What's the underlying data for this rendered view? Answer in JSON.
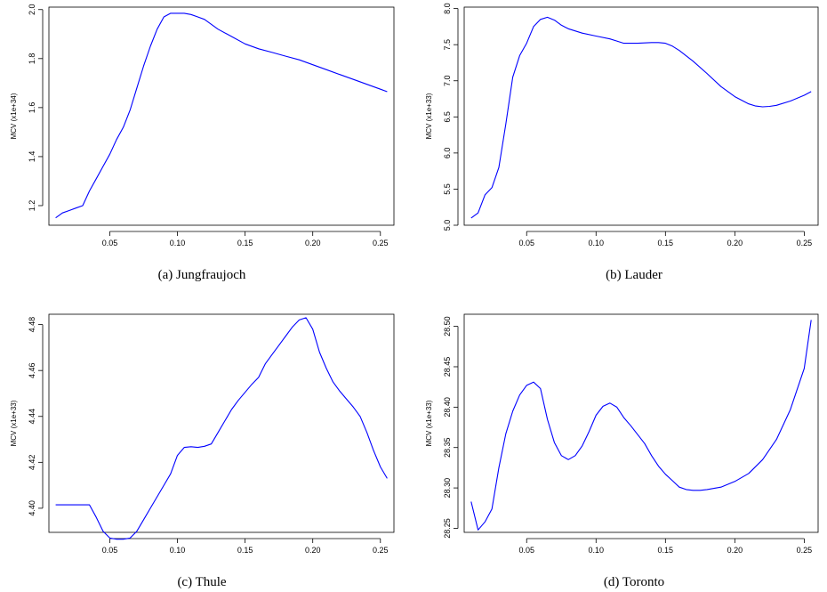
{
  "chart_data": [
    {
      "type": "line",
      "ylabel": "MCV (x1e+34)",
      "caption": "(a)  Jungfraujoch",
      "xlim": [
        0.005,
        0.26
      ],
      "ylim": [
        1.12,
        2.01
      ],
      "xticks": [
        0.05,
        0.1,
        0.15,
        0.2,
        0.25
      ],
      "xtick_labels": [
        "0.05",
        "0.10",
        "0.15",
        "0.20",
        "0.25"
      ],
      "yticks": [
        1.2,
        1.4,
        1.6,
        1.8,
        2.0
      ],
      "ytick_labels": [
        "1.2",
        "1.4",
        "1.6",
        "1.8",
        "2.0"
      ],
      "color": "#0000ff",
      "series": [
        {
          "x": [
            0.01,
            0.015,
            0.02,
            0.025,
            0.03,
            0.035,
            0.04,
            0.045,
            0.05,
            0.055,
            0.06,
            0.065,
            0.07,
            0.075,
            0.08,
            0.085,
            0.09,
            0.095,
            0.1,
            0.105,
            0.11,
            0.115,
            0.12,
            0.125,
            0.13,
            0.14,
            0.15,
            0.16,
            0.17,
            0.18,
            0.19,
            0.2,
            0.21,
            0.22,
            0.23,
            0.24,
            0.25,
            0.255
          ],
          "y": [
            1.15,
            1.17,
            1.18,
            1.19,
            1.2,
            1.26,
            1.31,
            1.36,
            1.41,
            1.47,
            1.52,
            1.59,
            1.68,
            1.77,
            1.85,
            1.92,
            1.97,
            1.985,
            1.985,
            1.985,
            1.98,
            1.97,
            1.96,
            1.94,
            1.92,
            1.89,
            1.86,
            1.84,
            1.825,
            1.81,
            1.795,
            1.775,
            1.755,
            1.735,
            1.715,
            1.695,
            1.675,
            1.665
          ]
        }
      ]
    },
    {
      "type": "line",
      "ylabel": "MCV (x1e+33)",
      "caption": "(b)  Lauder",
      "xlim": [
        0.005,
        0.26
      ],
      "ylim": [
        5.0,
        8.02
      ],
      "xticks": [
        0.05,
        0.1,
        0.15,
        0.2,
        0.25
      ],
      "xtick_labels": [
        "0.05",
        "0.10",
        "0.15",
        "0.20",
        "0.25"
      ],
      "yticks": [
        5.0,
        5.5,
        6.0,
        6.5,
        7.0,
        7.5,
        8.0
      ],
      "ytick_labels": [
        "5.0",
        "5.5",
        "6.0",
        "6.5",
        "7.0",
        "7.5",
        "8.0"
      ],
      "color": "#0000ff",
      "series": [
        {
          "x": [
            0.01,
            0.015,
            0.02,
            0.025,
            0.03,
            0.035,
            0.04,
            0.045,
            0.05,
            0.055,
            0.06,
            0.065,
            0.07,
            0.075,
            0.08,
            0.09,
            0.1,
            0.11,
            0.115,
            0.12,
            0.13,
            0.14,
            0.145,
            0.15,
            0.155,
            0.16,
            0.17,
            0.18,
            0.19,
            0.2,
            0.21,
            0.215,
            0.22,
            0.225,
            0.23,
            0.24,
            0.25,
            0.255
          ],
          "y": [
            5.1,
            5.17,
            5.42,
            5.52,
            5.8,
            6.4,
            7.05,
            7.35,
            7.52,
            7.75,
            7.85,
            7.88,
            7.84,
            7.77,
            7.72,
            7.66,
            7.62,
            7.58,
            7.55,
            7.52,
            7.52,
            7.53,
            7.53,
            7.52,
            7.48,
            7.42,
            7.27,
            7.1,
            6.92,
            6.78,
            6.68,
            6.65,
            6.64,
            6.645,
            6.66,
            6.72,
            6.8,
            6.85
          ]
        }
      ]
    },
    {
      "type": "line",
      "ylabel": "MCV (x1e+33)",
      "caption": "(c)  Thule",
      "xlim": [
        0.005,
        0.26
      ],
      "ylim": [
        4.3895,
        4.4845
      ],
      "xticks": [
        0.05,
        0.1,
        0.15,
        0.2,
        0.25
      ],
      "xtick_labels": [
        "0.05",
        "0.10",
        "0.15",
        "0.20",
        "0.25"
      ],
      "yticks": [
        4.4,
        4.42,
        4.44,
        4.46,
        4.48
      ],
      "ytick_labels": [
        "4.40",
        "4.42",
        "4.44",
        "4.46",
        "4.48"
      ],
      "color": "#0000ff",
      "series": [
        {
          "x": [
            0.01,
            0.015,
            0.02,
            0.025,
            0.03,
            0.035,
            0.04,
            0.045,
            0.05,
            0.055,
            0.06,
            0.065,
            0.07,
            0.075,
            0.08,
            0.085,
            0.09,
            0.095,
            0.1,
            0.105,
            0.11,
            0.115,
            0.12,
            0.125,
            0.13,
            0.135,
            0.14,
            0.145,
            0.15,
            0.155,
            0.16,
            0.165,
            0.17,
            0.175,
            0.18,
            0.185,
            0.19,
            0.195,
            0.2,
            0.205,
            0.21,
            0.215,
            0.22,
            0.225,
            0.23,
            0.235,
            0.24,
            0.245,
            0.25,
            0.255
          ],
          "y": [
            4.4015,
            4.4015,
            4.4015,
            4.4015,
            4.4015,
            4.4015,
            4.396,
            4.39,
            4.387,
            4.3865,
            4.3865,
            4.387,
            4.39,
            4.395,
            4.4,
            4.405,
            4.41,
            4.415,
            4.423,
            4.4265,
            4.4268,
            4.4265,
            4.427,
            4.428,
            4.433,
            4.438,
            4.443,
            4.447,
            4.4505,
            4.454,
            4.457,
            4.463,
            4.467,
            4.471,
            4.475,
            4.479,
            4.482,
            4.483,
            4.478,
            4.468,
            4.461,
            4.455,
            4.451,
            4.4475,
            4.444,
            4.44,
            4.433,
            4.425,
            4.418,
            4.413
          ]
        }
      ]
    },
    {
      "type": "line",
      "ylabel": "MCV (x1e+33)",
      "caption": "(d)  Toronto",
      "xlim": [
        0.005,
        0.26
      ],
      "ylim": [
        28.245,
        28.515
      ],
      "xticks": [
        0.05,
        0.1,
        0.15,
        0.2,
        0.25
      ],
      "xtick_labels": [
        "0.05",
        "0.10",
        "0.15",
        "0.20",
        "0.25"
      ],
      "yticks": [
        28.25,
        28.3,
        28.35,
        28.4,
        28.45,
        28.5
      ],
      "ytick_labels": [
        "28.25",
        "28.30",
        "28.35",
        "28.40",
        "28.45",
        "28.50"
      ],
      "color": "#0000ff",
      "series": [
        {
          "x": [
            0.01,
            0.015,
            0.02,
            0.025,
            0.03,
            0.035,
            0.04,
            0.045,
            0.05,
            0.055,
            0.06,
            0.065,
            0.07,
            0.075,
            0.08,
            0.085,
            0.09,
            0.095,
            0.1,
            0.105,
            0.11,
            0.115,
            0.12,
            0.125,
            0.13,
            0.135,
            0.14,
            0.145,
            0.15,
            0.155,
            0.16,
            0.165,
            0.17,
            0.175,
            0.18,
            0.19,
            0.2,
            0.21,
            0.22,
            0.23,
            0.24,
            0.25,
            0.255
          ],
          "y": [
            28.283,
            28.248,
            28.258,
            28.274,
            28.325,
            28.367,
            28.395,
            28.415,
            28.427,
            28.431,
            28.423,
            28.385,
            28.356,
            28.34,
            28.335,
            28.34,
            28.352,
            28.37,
            28.39,
            28.401,
            28.405,
            28.4,
            28.387,
            28.377,
            28.366,
            28.355,
            28.34,
            28.327,
            28.317,
            28.309,
            28.301,
            28.298,
            28.297,
            28.297,
            28.298,
            28.301,
            28.308,
            28.318,
            28.335,
            28.36,
            28.397,
            28.448,
            28.508
          ]
        }
      ]
    }
  ]
}
